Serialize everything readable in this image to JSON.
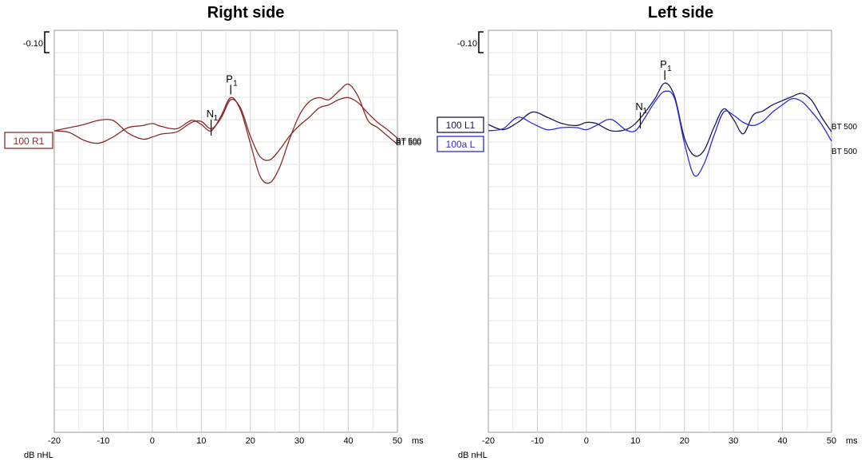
{
  "chart_data": [
    {
      "type": "line",
      "title": "Right side",
      "xlabel": "ms",
      "ylabel": "dB nHL",
      "x_ticks": [
        "-20",
        "-10",
        "0",
        "10",
        "20",
        "30",
        "40",
        "50"
      ],
      "xlim": [
        -20,
        50
      ],
      "grid": true,
      "scale_label": "-0.10",
      "peak_labels": [
        {
          "name": "P",
          "sub": "1",
          "x": 16
        },
        {
          "name": "N",
          "sub": "1",
          "x": 12
        }
      ],
      "trace_label": "100 R1",
      "end_labels": [
        "BT 500",
        "BT 500"
      ],
      "colors": {
        "trace": "#8b2a2a"
      },
      "series": [
        {
          "x": [
            -20,
            -17,
            -14,
            -11,
            -8,
            -5,
            -2,
            0,
            2,
            5,
            8,
            10,
            12,
            14,
            16,
            18,
            20,
            22,
            24,
            26,
            28,
            30,
            32,
            34,
            36,
            38,
            40,
            42,
            44,
            46,
            48,
            50
          ],
          "y": [
            0,
            -0.15,
            -0.9,
            -1.2,
            -0.6,
            0.3,
            0.5,
            0.7,
            0.4,
            0.2,
            1.0,
            0.6,
            0.0,
            1.4,
            3.2,
            2.0,
            -1.2,
            -4.4,
            -5.0,
            -3.5,
            -0.8,
            1.5,
            2.8,
            3.2,
            3.0,
            3.8,
            4.5,
            3.3,
            1.0,
            0.3,
            -0.5,
            -1.3
          ]
        },
        {
          "x": [
            -20,
            -17,
            -14,
            -11,
            -8,
            -5,
            -2,
            0,
            2,
            5,
            8,
            10,
            12,
            14,
            16,
            18,
            20,
            22,
            24,
            26,
            28,
            30,
            32,
            34,
            36,
            38,
            40,
            42,
            44,
            46,
            48,
            50
          ],
          "y": [
            0,
            0.3,
            0.6,
            1.0,
            1.0,
            -0.2,
            -0.8,
            -0.6,
            -0.3,
            -0.1,
            0.8,
            0.9,
            0.2,
            1.2,
            3.0,
            2.2,
            -0.5,
            -2.5,
            -2.8,
            -1.8,
            -0.5,
            0.5,
            1.3,
            2.2,
            2.5,
            3.0,
            3.2,
            2.7,
            1.7,
            0.8,
            0.1,
            -0.7
          ]
        }
      ]
    },
    {
      "type": "line",
      "title": "Left side",
      "xlabel": "ms",
      "ylabel": "dB nHL",
      "x_ticks": [
        "-20",
        "-10",
        "0",
        "10",
        "20",
        "30",
        "40",
        "50"
      ],
      "xlim": [
        -20,
        50
      ],
      "grid": true,
      "scale_label": "-0.10",
      "peak_labels": [
        {
          "name": "P",
          "sub": "1",
          "x": 16
        },
        {
          "name": "N",
          "sub": "1",
          "x": 11
        }
      ],
      "trace_labels": [
        "100 L1",
        "100a L"
      ],
      "end_labels": [
        "BT 500",
        "BT 500"
      ],
      "colors": {
        "trace1": "#1a1a55",
        "trace2": "#2b2be0"
      },
      "series": [
        {
          "x": [
            -20,
            -17,
            -14,
            -11,
            -8,
            -5,
            -2,
            0,
            2,
            5,
            8,
            10,
            12,
            14,
            16,
            18,
            20,
            22,
            24,
            26,
            28,
            30,
            32,
            34,
            36,
            38,
            40,
            42,
            44,
            46,
            48,
            50
          ],
          "y": [
            0.3,
            -0.2,
            0.5,
            1.5,
            1.0,
            0.4,
            0.2,
            0.5,
            0.4,
            -0.3,
            -0.2,
            0.4,
            1.5,
            2.8,
            4.3,
            3.0,
            -1.0,
            -2.7,
            -2.2,
            0.0,
            1.8,
            0.8,
            -0.6,
            1.2,
            1.6,
            2.2,
            2.6,
            3.0,
            3.3,
            2.6,
            1.0,
            -0.4
          ]
        },
        {
          "x": [
            -20,
            -17,
            -14,
            -11,
            -8,
            -5,
            -2,
            0,
            2,
            5,
            8,
            10,
            12,
            14,
            16,
            18,
            20,
            22,
            24,
            26,
            28,
            30,
            32,
            34,
            36,
            38,
            40,
            42,
            44,
            46,
            48,
            50
          ],
          "y": [
            -0.3,
            -0.1,
            1.0,
            0.4,
            -0.2,
            0.0,
            0.0,
            -0.2,
            0.2,
            0.8,
            -0.2,
            -0.3,
            1.0,
            2.5,
            3.5,
            2.8,
            -1.5,
            -4.6,
            -3.5,
            -0.8,
            1.5,
            1.2,
            0.5,
            0.2,
            0.6,
            1.5,
            2.2,
            2.8,
            2.5,
            1.5,
            0.3,
            -1.3
          ]
        }
      ]
    }
  ]
}
